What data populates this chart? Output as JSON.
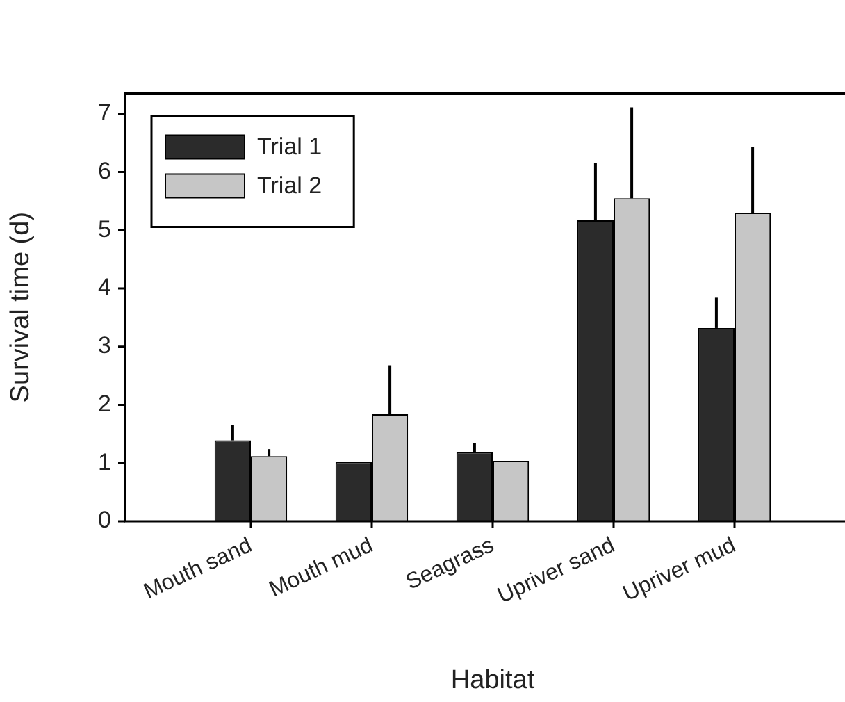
{
  "chart_data": {
    "type": "bar",
    "xlabel": "Habitat",
    "ylabel": "Survival time (d)",
    "categories": [
      "Mouth sand",
      "Mouth mud",
      "Seagrass",
      "Upriver sand",
      "Upriver mud"
    ],
    "series": [
      {
        "name": "Trial 1",
        "color": "#2b2b2b",
        "values": [
          1.39,
          1.02,
          1.19,
          5.17,
          3.32
        ],
        "errors": [
          [
            1.39,
            1.65
          ],
          null,
          [
            1.19,
            1.34
          ],
          [
            5.17,
            6.16
          ],
          [
            3.32,
            3.84
          ]
        ]
      },
      {
        "name": "Trial 2",
        "color": "#c6c6c6",
        "values": [
          1.12,
          1.84,
          1.04,
          5.55,
          5.3
        ],
        "errors": [
          [
            1.12,
            1.24
          ],
          [
            1.84,
            2.68
          ],
          null,
          [
            5.55,
            7.11
          ],
          [
            5.3,
            6.43
          ]
        ]
      }
    ],
    "ylim": [
      0,
      7.35
    ],
    "yticks": [
      0,
      1,
      2,
      3,
      4,
      5,
      6,
      7
    ],
    "grid": false,
    "legend": "top left"
  }
}
